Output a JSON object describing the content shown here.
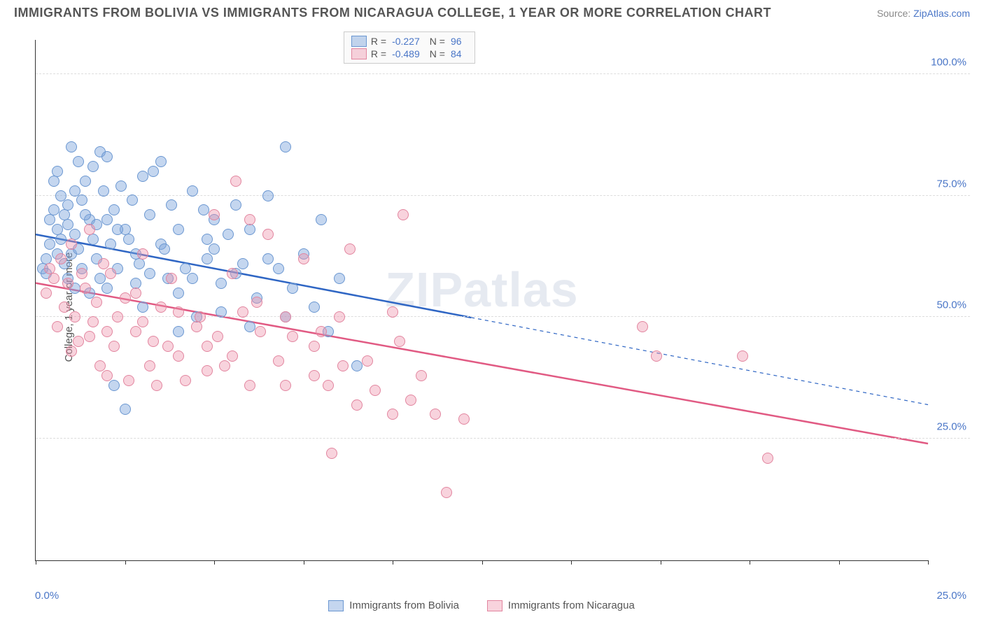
{
  "title": "IMMIGRANTS FROM BOLIVIA VS IMMIGRANTS FROM NICARAGUA COLLEGE, 1 YEAR OR MORE CORRELATION CHART",
  "source_prefix": "Source: ",
  "source_name": "ZipAtlas.com",
  "watermark": "ZIPatlas",
  "chart": {
    "type": "scatter",
    "ylabel": "College, 1 year or more",
    "xlim": [
      0,
      25
    ],
    "ylim": [
      0,
      107
    ],
    "ytick_values": [
      25,
      50,
      75,
      100
    ],
    "ytick_labels": [
      "25.0%",
      "50.0%",
      "75.0%",
      "100.0%"
    ],
    "xtick_values": [
      0,
      2.5,
      5,
      7.5,
      10,
      12.5,
      15,
      17.5,
      20,
      22.5,
      25
    ],
    "x_min_label": "0.0%",
    "x_max_label": "25.0%",
    "background_color": "#ffffff",
    "grid_color": "#dddddd",
    "title_fontsize": 18,
    "label_fontsize": 15,
    "marker_radius": 8,
    "trend_line_width": 2.5
  },
  "series": [
    {
      "name": "Immigrants from Bolivia",
      "fill": "rgba(124,163,219,0.45)",
      "stroke": "#6b97d1",
      "line_color": "#2f66c4",
      "r_label": "R =",
      "r_value": "-0.227",
      "n_label": "N =",
      "n_value": "96",
      "trend": {
        "x1": 0,
        "y1": 67,
        "x2": 12.2,
        "y2": 53,
        "x2_ext": 25,
        "y2_ext": 32,
        "solid_until_x": 12.2
      },
      "points": [
        [
          0.2,
          60
        ],
        [
          0.3,
          62
        ],
        [
          0.4,
          70
        ],
        [
          0.4,
          65
        ],
        [
          0.5,
          72
        ],
        [
          0.5,
          78
        ],
        [
          0.6,
          80
        ],
        [
          0.6,
          68
        ],
        [
          0.7,
          75
        ],
        [
          0.7,
          66
        ],
        [
          0.8,
          71
        ],
        [
          0.8,
          61
        ],
        [
          0.9,
          69
        ],
        [
          0.9,
          73
        ],
        [
          1.0,
          85
        ],
        [
          1.0,
          63
        ],
        [
          1.1,
          67
        ],
        [
          1.1,
          76
        ],
        [
          1.2,
          64
        ],
        [
          1.2,
          82
        ],
        [
          1.3,
          60
        ],
        [
          1.3,
          74
        ],
        [
          1.4,
          78
        ],
        [
          1.5,
          55
        ],
        [
          1.5,
          70
        ],
        [
          1.6,
          81
        ],
        [
          1.6,
          66
        ],
        [
          1.7,
          62
        ],
        [
          1.8,
          84
        ],
        [
          1.8,
          58
        ],
        [
          1.9,
          76
        ],
        [
          2.0,
          70
        ],
        [
          2.0,
          83
        ],
        [
          2.1,
          65
        ],
        [
          2.2,
          36
        ],
        [
          2.2,
          72
        ],
        [
          2.3,
          60
        ],
        [
          2.4,
          77
        ],
        [
          2.5,
          68
        ],
        [
          2.5,
          31
        ],
        [
          2.7,
          74
        ],
        [
          2.8,
          63
        ],
        [
          2.8,
          57
        ],
        [
          3.0,
          79
        ],
        [
          3.0,
          52
        ],
        [
          3.2,
          71
        ],
        [
          3.3,
          80
        ],
        [
          3.5,
          65
        ],
        [
          3.5,
          82
        ],
        [
          3.7,
          58
        ],
        [
          3.8,
          73
        ],
        [
          4.0,
          68
        ],
        [
          4.0,
          55
        ],
        [
          4.2,
          60
        ],
        [
          4.4,
          76
        ],
        [
          4.5,
          50
        ],
        [
          4.7,
          72
        ],
        [
          4.8,
          62
        ],
        [
          5.0,
          64
        ],
        [
          5.0,
          70
        ],
        [
          5.2,
          57
        ],
        [
          5.4,
          67
        ],
        [
          5.6,
          73
        ],
        [
          5.8,
          61
        ],
        [
          6.0,
          68
        ],
        [
          6.2,
          54
        ],
        [
          6.5,
          75
        ],
        [
          6.8,
          60
        ],
        [
          7.0,
          85
        ],
        [
          7.2,
          56
        ],
        [
          7.5,
          63
        ],
        [
          7.8,
          52
        ],
        [
          8.0,
          70
        ],
        [
          8.2,
          47
        ],
        [
          8.5,
          58
        ],
        [
          9.0,
          40
        ],
        [
          0.3,
          59
        ],
        [
          0.6,
          63
        ],
        [
          0.9,
          58
        ],
        [
          1.1,
          56
        ],
        [
          1.4,
          71
        ],
        [
          1.7,
          69
        ],
        [
          2.0,
          56
        ],
        [
          2.3,
          68
        ],
        [
          2.6,
          66
        ],
        [
          2.9,
          61
        ],
        [
          3.2,
          59
        ],
        [
          3.6,
          64
        ],
        [
          4.0,
          47
        ],
        [
          4.4,
          58
        ],
        [
          4.8,
          66
        ],
        [
          5.2,
          51
        ],
        [
          5.6,
          59
        ],
        [
          6.0,
          48
        ],
        [
          6.5,
          62
        ],
        [
          7.0,
          50
        ]
      ]
    },
    {
      "name": "Immigrants from Nicaragua",
      "fill": "rgba(238,145,170,0.40)",
      "stroke": "#e2859f",
      "line_color": "#e15a83",
      "r_label": "R =",
      "r_value": "-0.489",
      "n_label": "N =",
      "n_value": "84",
      "trend": {
        "x1": 0,
        "y1": 57,
        "x2": 25,
        "y2": 24,
        "solid_until_x": 25
      },
      "points": [
        [
          0.3,
          55
        ],
        [
          0.4,
          60
        ],
        [
          0.5,
          58
        ],
        [
          0.6,
          48
        ],
        [
          0.7,
          62
        ],
        [
          0.8,
          52
        ],
        [
          0.9,
          57
        ],
        [
          1.0,
          65
        ],
        [
          1.1,
          50
        ],
        [
          1.2,
          45
        ],
        [
          1.3,
          59
        ],
        [
          1.4,
          56
        ],
        [
          1.5,
          68
        ],
        [
          1.6,
          49
        ],
        [
          1.7,
          53
        ],
        [
          1.8,
          40
        ],
        [
          1.9,
          61
        ],
        [
          2.0,
          47
        ],
        [
          2.1,
          59
        ],
        [
          2.2,
          44
        ],
        [
          2.3,
          50
        ],
        [
          2.5,
          54
        ],
        [
          2.6,
          37
        ],
        [
          2.8,
          47
        ],
        [
          3.0,
          49
        ],
        [
          3.0,
          63
        ],
        [
          3.2,
          40
        ],
        [
          3.4,
          36
        ],
        [
          3.5,
          52
        ],
        [
          3.7,
          44
        ],
        [
          3.8,
          58
        ],
        [
          4.0,
          42
        ],
        [
          4.2,
          37
        ],
        [
          4.5,
          48
        ],
        [
          4.6,
          50
        ],
        [
          4.8,
          39
        ],
        [
          5.0,
          71
        ],
        [
          5.1,
          46
        ],
        [
          5.3,
          40
        ],
        [
          5.5,
          59
        ],
        [
          5.6,
          78
        ],
        [
          5.8,
          51
        ],
        [
          6.0,
          70
        ],
        [
          6.0,
          36
        ],
        [
          6.3,
          47
        ],
        [
          6.5,
          67
        ],
        [
          6.8,
          41
        ],
        [
          7.0,
          50
        ],
        [
          7.2,
          46
        ],
        [
          7.5,
          62
        ],
        [
          7.8,
          38
        ],
        [
          8.0,
          47
        ],
        [
          8.2,
          36
        ],
        [
          8.3,
          22
        ],
        [
          8.5,
          50
        ],
        [
          8.8,
          64
        ],
        [
          9.0,
          32
        ],
        [
          9.3,
          41
        ],
        [
          9.5,
          35
        ],
        [
          10.0,
          30
        ],
        [
          10.0,
          51
        ],
        [
          10.2,
          45
        ],
        [
          10.3,
          71
        ],
        [
          10.5,
          33
        ],
        [
          10.8,
          38
        ],
        [
          11.2,
          30
        ],
        [
          11.5,
          14
        ],
        [
          12.0,
          29
        ],
        [
          17.0,
          48
        ],
        [
          17.4,
          42
        ],
        [
          19.8,
          42
        ],
        [
          20.5,
          21
        ],
        [
          1.0,
          43
        ],
        [
          1.5,
          46
        ],
        [
          2.0,
          38
        ],
        [
          2.8,
          55
        ],
        [
          3.3,
          45
        ],
        [
          4.0,
          51
        ],
        [
          4.8,
          44
        ],
        [
          5.5,
          42
        ],
        [
          6.2,
          53
        ],
        [
          7.0,
          36
        ],
        [
          7.8,
          44
        ],
        [
          8.6,
          40
        ]
      ]
    }
  ]
}
